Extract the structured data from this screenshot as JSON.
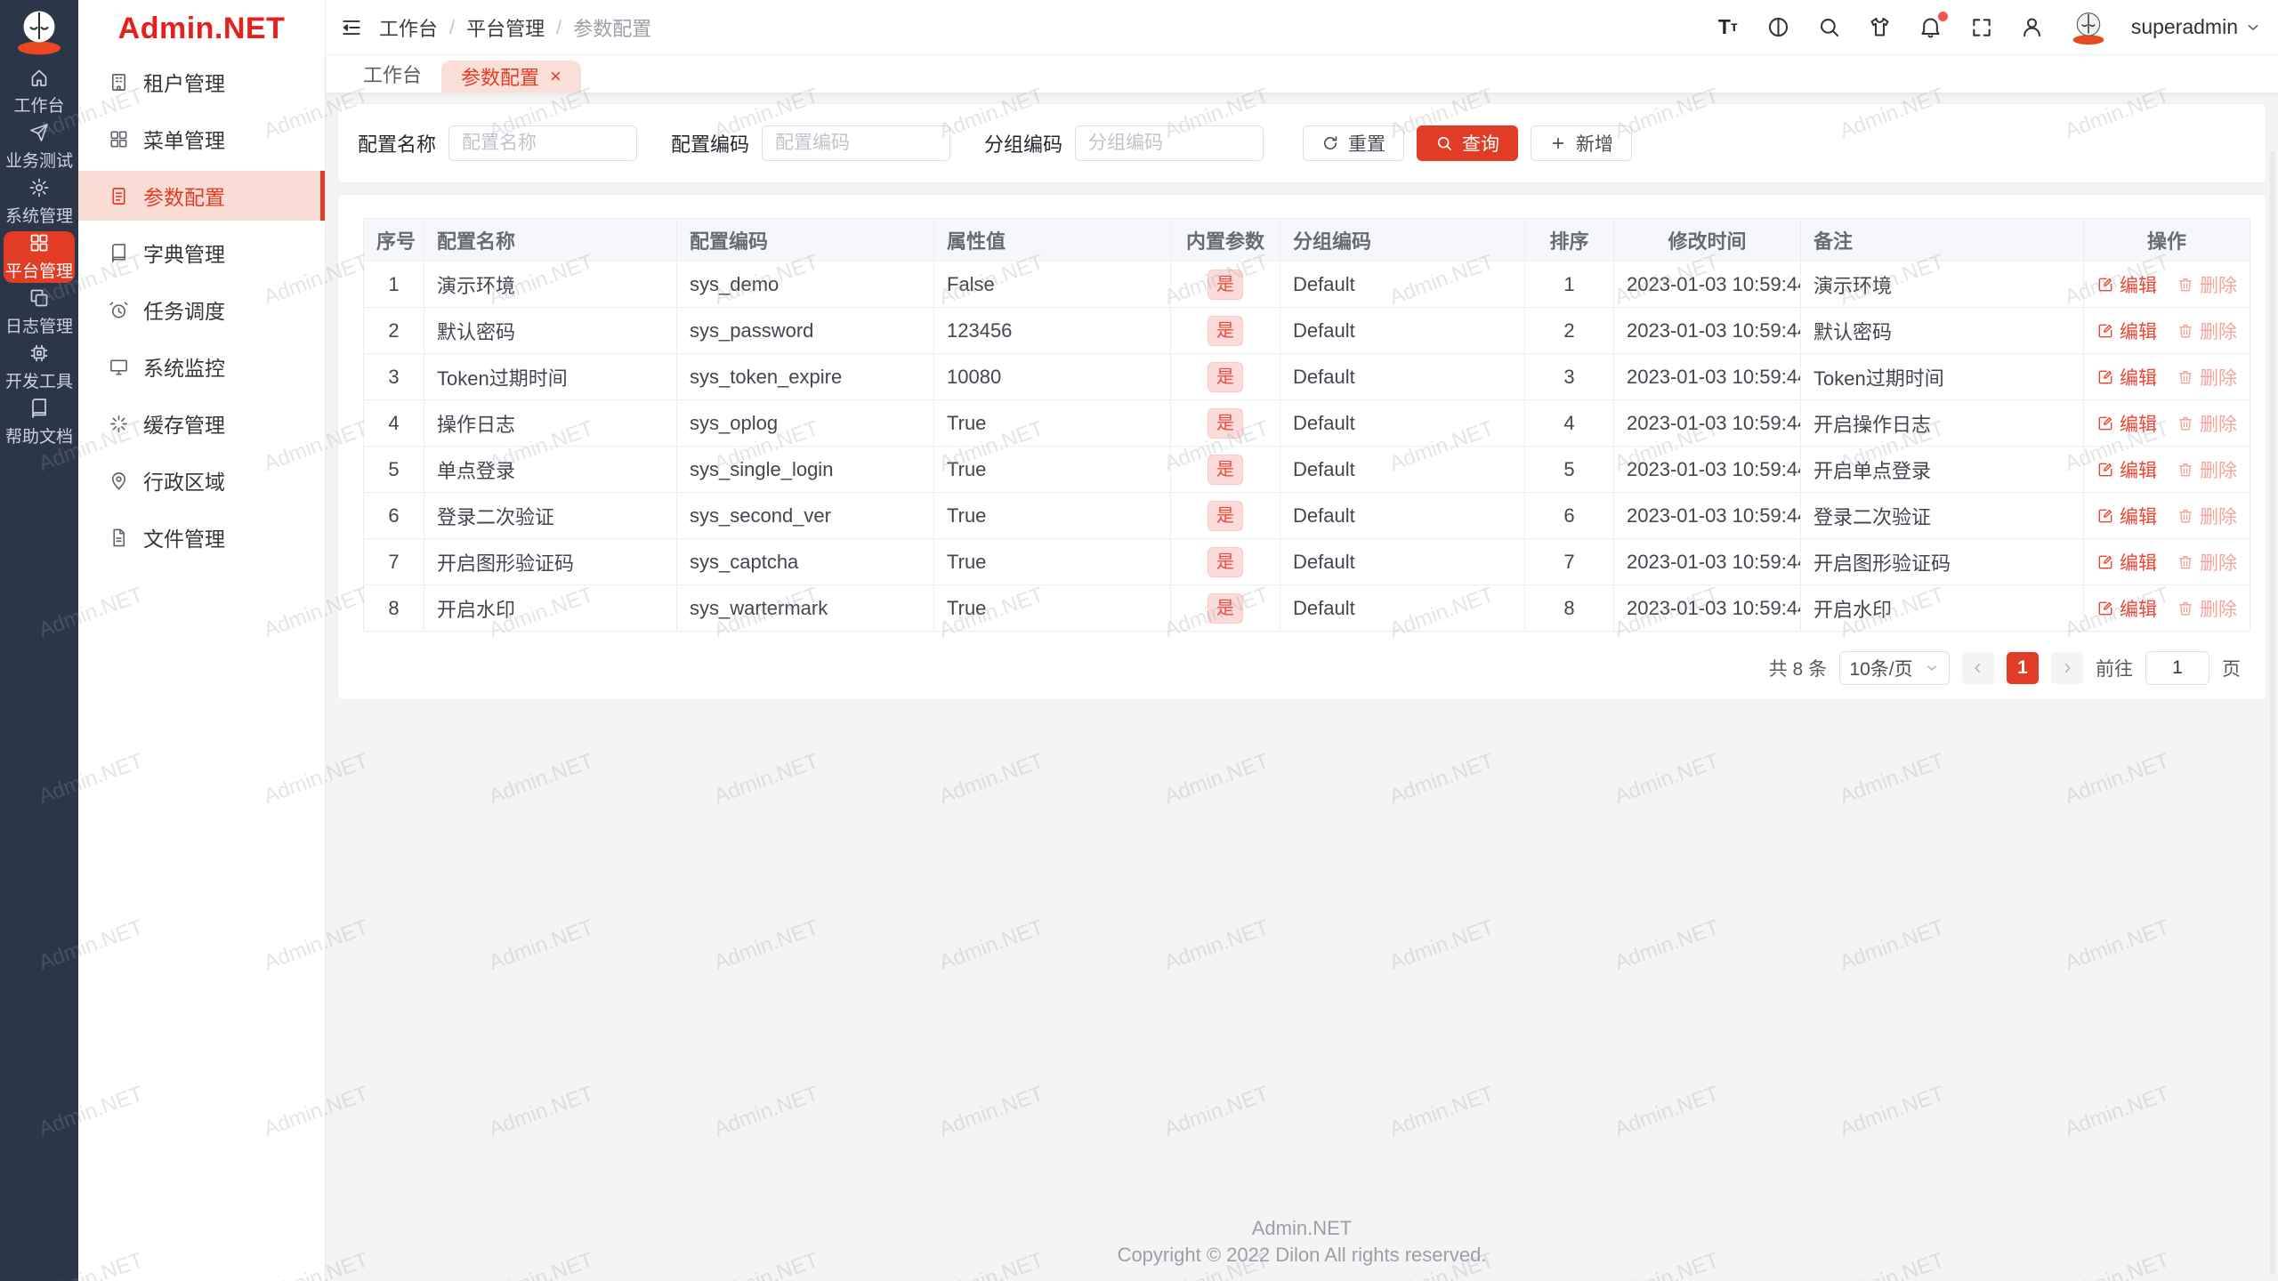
{
  "colors": {
    "accent": "#e23c26",
    "logo_red": "#e6211c",
    "rail_bg": "#2b3648",
    "active_menu_bg": "#f9dcd3",
    "tag_bg": "#fbdcda",
    "tag_text": "#ee4b3a",
    "content_bg": "#f4f4f5"
  },
  "rail": {
    "items": [
      {
        "id": "workbench",
        "label": "工作台",
        "icon": "home-icon",
        "active": false
      },
      {
        "id": "business-test",
        "label": "业务测试",
        "icon": "send-icon",
        "active": false
      },
      {
        "id": "system-mgmt",
        "label": "系统管理",
        "icon": "gear-icon",
        "active": false
      },
      {
        "id": "platform-mgmt",
        "label": "平台管理",
        "icon": "grid-icon",
        "active": true
      },
      {
        "id": "log-mgmt",
        "label": "日志管理",
        "icon": "copy-icon",
        "active": false
      },
      {
        "id": "dev-tools",
        "label": "开发工具",
        "icon": "chip-icon",
        "active": false
      },
      {
        "id": "help-docs",
        "label": "帮助文档",
        "icon": "book-icon",
        "active": false
      }
    ]
  },
  "sidebar": {
    "logo": "Admin.NET",
    "items": [
      {
        "id": "tenant",
        "label": "租户管理",
        "icon": "building-icon",
        "active": false
      },
      {
        "id": "menu",
        "label": "菜单管理",
        "icon": "grid-icon",
        "active": false
      },
      {
        "id": "config",
        "label": "参数配置",
        "icon": "document-icon",
        "active": true
      },
      {
        "id": "dict",
        "label": "字典管理",
        "icon": "book-icon",
        "active": false
      },
      {
        "id": "schedule",
        "label": "任务调度",
        "icon": "alarm-icon",
        "active": false
      },
      {
        "id": "monitor",
        "label": "系统监控",
        "icon": "monitor-icon",
        "active": false
      },
      {
        "id": "cache",
        "label": "缓存管理",
        "icon": "spinner-icon",
        "active": false
      },
      {
        "id": "region",
        "label": "行政区域",
        "icon": "location-icon",
        "active": false
      },
      {
        "id": "file",
        "label": "文件管理",
        "icon": "file-icon",
        "active": false
      }
    ]
  },
  "header": {
    "breadcrumb": [
      "工作台",
      "平台管理",
      "参数配置"
    ],
    "separator": "/",
    "username": "superadmin"
  },
  "tabs": [
    {
      "label": "工作台",
      "active": false,
      "closable": false
    },
    {
      "label": "参数配置",
      "active": true,
      "closable": true,
      "close_glyph": "×"
    }
  ],
  "search": {
    "fields": [
      {
        "label": "配置名称",
        "placeholder": "配置名称",
        "value": ""
      },
      {
        "label": "配置编码",
        "placeholder": "配置编码",
        "value": ""
      },
      {
        "label": "分组编码",
        "placeholder": "分组编码",
        "value": ""
      }
    ],
    "reset_label": "重置",
    "query_label": "查询",
    "add_label": "新增"
  },
  "table": {
    "columns": [
      "序号",
      "配置名称",
      "配置编码",
      "属性值",
      "内置参数",
      "分组编码",
      "排序",
      "修改时间",
      "备注",
      "操作"
    ],
    "edit_label": "编辑",
    "delete_label": "删除",
    "rows": [
      {
        "seq": "1",
        "name": "演示环境",
        "code": "sys_demo",
        "value": "False",
        "builtin": "是",
        "group": "Default",
        "order": "1",
        "time": "2023-01-03 10:59:44",
        "remark": "演示环境"
      },
      {
        "seq": "2",
        "name": "默认密码",
        "code": "sys_password",
        "value": "123456",
        "builtin": "是",
        "group": "Default",
        "order": "2",
        "time": "2023-01-03 10:59:44",
        "remark": "默认密码"
      },
      {
        "seq": "3",
        "name": "Token过期时间",
        "code": "sys_token_expire",
        "value": "10080",
        "builtin": "是",
        "group": "Default",
        "order": "3",
        "time": "2023-01-03 10:59:44",
        "remark": "Token过期时间"
      },
      {
        "seq": "4",
        "name": "操作日志",
        "code": "sys_oplog",
        "value": "True",
        "builtin": "是",
        "group": "Default",
        "order": "4",
        "time": "2023-01-03 10:59:44",
        "remark": "开启操作日志"
      },
      {
        "seq": "5",
        "name": "单点登录",
        "code": "sys_single_login",
        "value": "True",
        "builtin": "是",
        "group": "Default",
        "order": "5",
        "time": "2023-01-03 10:59:44",
        "remark": "开启单点登录"
      },
      {
        "seq": "6",
        "name": "登录二次验证",
        "code": "sys_second_ver",
        "value": "True",
        "builtin": "是",
        "group": "Default",
        "order": "6",
        "time": "2023-01-03 10:59:44",
        "remark": "登录二次验证"
      },
      {
        "seq": "7",
        "name": "开启图形验证码",
        "code": "sys_captcha",
        "value": "True",
        "builtin": "是",
        "group": "Default",
        "order": "7",
        "time": "2023-01-03 10:59:44",
        "remark": "开启图形验证码"
      },
      {
        "seq": "8",
        "name": "开启水印",
        "code": "sys_wartermark",
        "value": "True",
        "builtin": "是",
        "group": "Default",
        "order": "8",
        "time": "2023-01-03 10:59:44",
        "remark": "开启水印"
      }
    ]
  },
  "pagination": {
    "total_label": "共 8 条",
    "page_size": "10条/页",
    "current_page": "1",
    "goto_label": "前往",
    "goto_value": "1",
    "page_unit": "页"
  },
  "footer": {
    "line1": "Admin.NET",
    "line2": "Copyright © 2022 Dilon All rights reserved."
  },
  "watermark": "Admin.NET"
}
